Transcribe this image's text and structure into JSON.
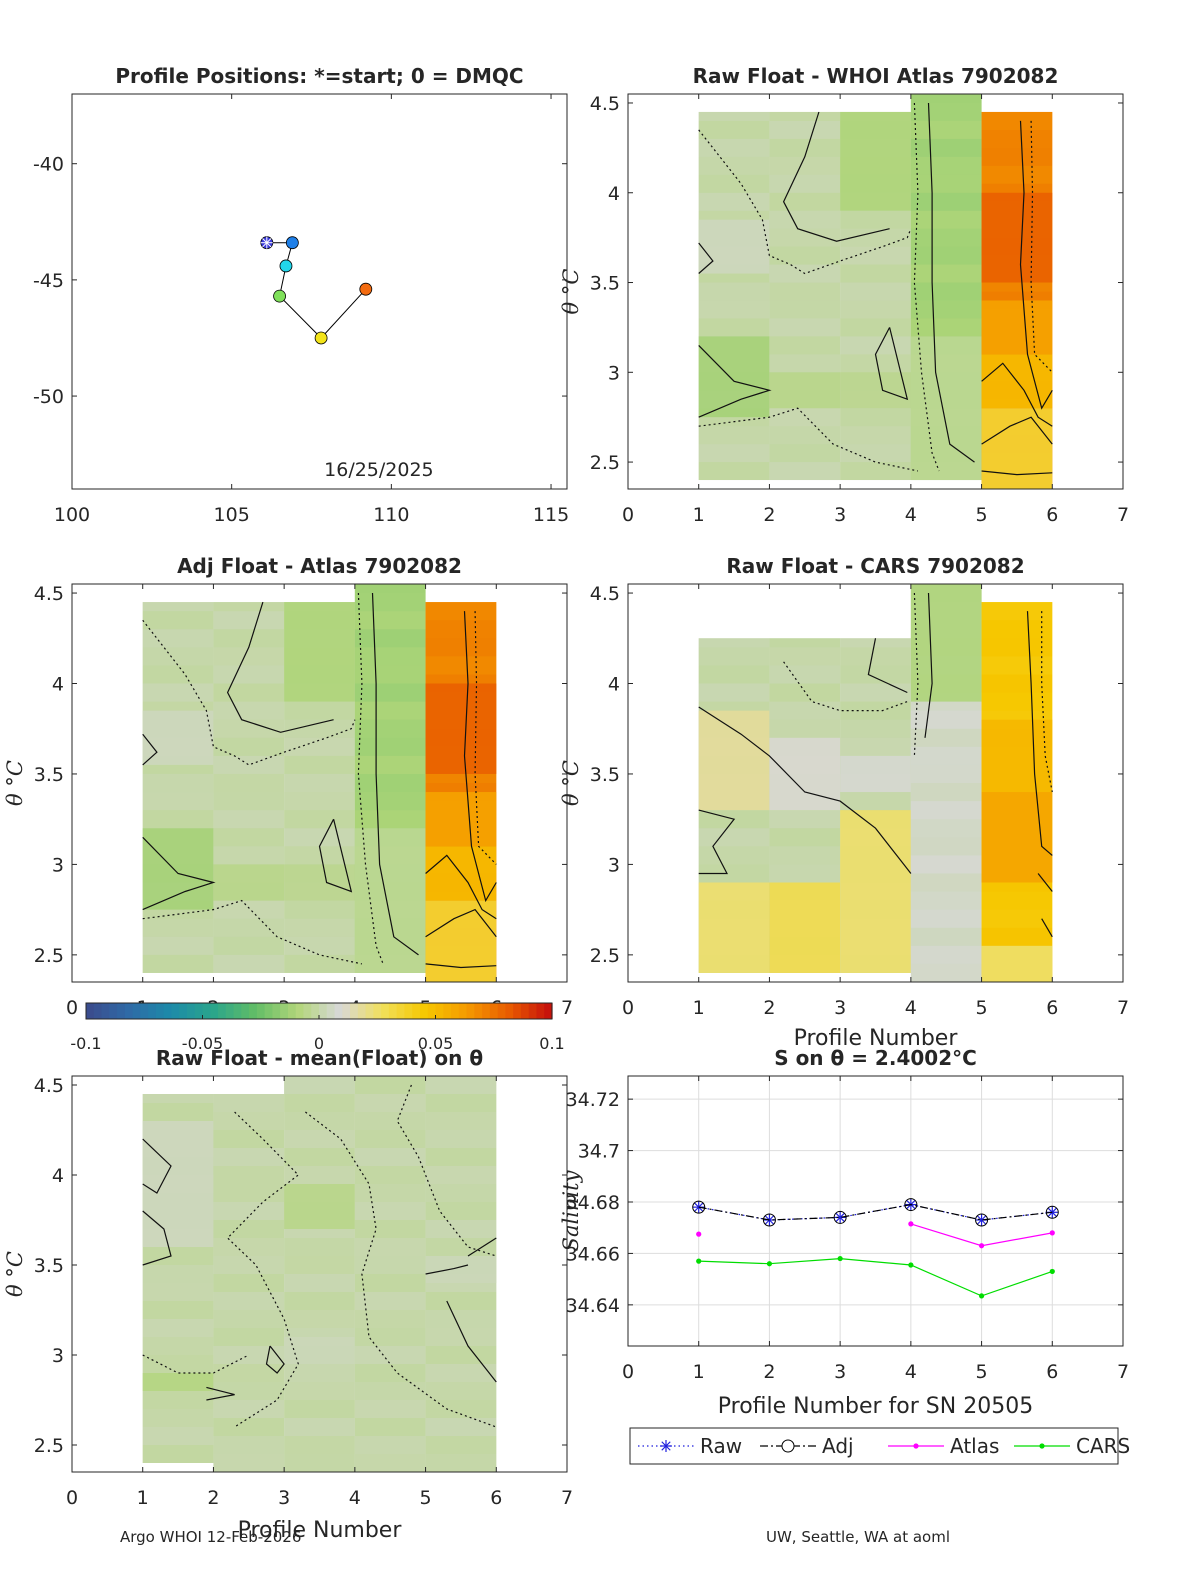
{
  "colors": {
    "axis": "#262626",
    "grid": "#dddddd",
    "neutral": "#d7d7d7",
    "raw": "#1f1fdd",
    "adj": "#000000",
    "atlas": "#ff00ff",
    "cars": "#00dd00"
  },
  "colorbar": {
    "ticks": [
      -0.1,
      -0.05,
      0,
      0.05,
      0.1
    ],
    "tick_labels": [
      "-0.1",
      "-0.05",
      "0",
      "0.05",
      "0.1"
    ],
    "range": [
      -0.1,
      0.1
    ],
    "colors": [
      "#3b4a8c",
      "#2f6aa6",
      "#1c8aa9",
      "#2aa58b",
      "#62bd66",
      "#b2d67a",
      "#d8d8d8",
      "#f1e05a",
      "#f6c700",
      "#f59a00",
      "#e85a00",
      "#c40c0c"
    ]
  },
  "footer": {
    "left": "Argo WHOI 12-Feb-2026",
    "right": "UW, Seattle, WA at aoml"
  },
  "chart_data": [
    {
      "id": "positions",
      "type": "scatter",
      "title": "Profile Positions: *=start; 0 = DMQC",
      "xlabel": "",
      "ylabel": "",
      "xlim": [
        100,
        115.5
      ],
      "ylim": [
        -54,
        -37
      ],
      "xticks": [
        100,
        105,
        110,
        115
      ],
      "yticks": [
        -40,
        -45,
        -50
      ],
      "annotation": "16/25/2025",
      "points": [
        {
          "lon": 106.1,
          "lat": -43.4,
          "color": "#3b3bdc",
          "marker": "star"
        },
        {
          "lon": 106.9,
          "lat": -43.4,
          "color": "#1e7fe8",
          "marker": "circle"
        },
        {
          "lon": 106.7,
          "lat": -44.4,
          "color": "#22d6ea",
          "marker": "circle"
        },
        {
          "lon": 106.5,
          "lat": -45.7,
          "color": "#7fe05a",
          "marker": "circle"
        },
        {
          "lon": 107.8,
          "lat": -47.5,
          "color": "#f3e41a",
          "marker": "circle"
        },
        {
          "lon": 109.2,
          "lat": -45.4,
          "color": "#f36b10",
          "marker": "circle"
        }
      ]
    },
    {
      "id": "raw-atlas",
      "type": "heatmap",
      "title": "Raw Float - WHOI Atlas  7902082",
      "xlabel": "",
      "ylabel": "θ °C",
      "xlim": [
        0,
        7
      ],
      "ylim": [
        2.35,
        4.55
      ],
      "xticks": [
        0,
        1,
        2,
        3,
        4,
        5,
        6,
        7
      ],
      "yticks": [
        2.5,
        3,
        3.5,
        4,
        4.5
      ],
      "columns": [
        {
          "x0": 1,
          "x1": 2,
          "ymin": 2.4,
          "ymax": 4.45,
          "base": 0,
          "patches": [
            [
              2.75,
              3.2,
              -0.012
            ],
            [
              3.55,
              3.85,
              0.004
            ]
          ]
        },
        {
          "x0": 2,
          "x1": 3,
          "ymin": 2.4,
          "ymax": 4.45,
          "base": 0,
          "patches": [
            [
              2.8,
              3.0,
              -0.006
            ]
          ]
        },
        {
          "x0": 3,
          "x1": 4,
          "ymin": 2.4,
          "ymax": 4.45,
          "base": 0,
          "patches": [
            [
              3.9,
              4.45,
              -0.01
            ],
            [
              2.8,
              3.0,
              -0.005
            ]
          ]
        },
        {
          "x0": 4,
          "x1": 5,
          "ymin": 2.4,
          "ymax": 4.55,
          "base": -0.012,
          "patches": [
            [
              2.4,
              3.2,
              -0.004
            ]
          ]
        },
        {
          "x0": 5,
          "x1": 6,
          "ymin": 2.35,
          "ymax": 4.45,
          "base": 0.07,
          "patches": [
            [
              2.35,
              2.8,
              0.035
            ],
            [
              2.8,
              3.1,
              0.05
            ],
            [
              3.1,
              3.4,
              0.06
            ],
            [
              3.5,
              4.0,
              0.08
            ]
          ]
        }
      ]
    },
    {
      "id": "adj-atlas",
      "type": "heatmap",
      "title": "Adj Float - Atlas  7902082",
      "xlabel": "",
      "ylabel": "θ °C",
      "xlim": [
        0,
        7
      ],
      "ylim": [
        2.35,
        4.55
      ],
      "xticks": [
        0,
        1,
        2,
        3,
        4,
        5,
        6,
        7
      ],
      "yticks": [
        2.5,
        3,
        3.5,
        4,
        4.5
      ],
      "columns": [
        {
          "x0": 1,
          "x1": 2,
          "ymin": 2.4,
          "ymax": 4.45,
          "base": 0,
          "patches": [
            [
              2.75,
              3.2,
              -0.012
            ],
            [
              3.55,
              3.85,
              0.004
            ]
          ]
        },
        {
          "x0": 2,
          "x1": 3,
          "ymin": 2.4,
          "ymax": 4.45,
          "base": 0,
          "patches": [
            [
              2.8,
              3.0,
              -0.006
            ]
          ]
        },
        {
          "x0": 3,
          "x1": 4,
          "ymin": 2.4,
          "ymax": 4.45,
          "base": 0,
          "patches": [
            [
              3.9,
              4.45,
              -0.01
            ],
            [
              2.8,
              3.0,
              -0.005
            ]
          ]
        },
        {
          "x0": 4,
          "x1": 5,
          "ymin": 2.4,
          "ymax": 4.55,
          "base": -0.012,
          "patches": [
            [
              2.4,
              3.2,
              -0.004
            ]
          ]
        },
        {
          "x0": 5,
          "x1": 6,
          "ymin": 2.35,
          "ymax": 4.45,
          "base": 0.07,
          "patches": [
            [
              2.35,
              2.8,
              0.035
            ],
            [
              2.8,
              3.1,
              0.05
            ],
            [
              3.1,
              3.4,
              0.06
            ],
            [
              3.5,
              4.0,
              0.08
            ]
          ]
        }
      ]
    },
    {
      "id": "raw-cars",
      "type": "heatmap",
      "title": "Raw Float - CARS  7902082",
      "xlabel": "Profile Number",
      "ylabel": "θ °C",
      "xlim": [
        0,
        7
      ],
      "ylim": [
        2.35,
        4.55
      ],
      "xticks": [
        0,
        1,
        2,
        3,
        4,
        5,
        6,
        7
      ],
      "yticks": [
        2.5,
        3,
        3.5,
        4,
        4.5
      ],
      "columns": [
        {
          "x0": 1,
          "x1": 2,
          "ymin": 2.4,
          "ymax": 4.25,
          "base": 0,
          "patches": [
            [
              2.4,
              2.9,
              0.025
            ],
            [
              3.3,
              3.85,
              0.018
            ]
          ]
        },
        {
          "x0": 2,
          "x1": 3,
          "ymin": 2.4,
          "ymax": 4.25,
          "base": 0,
          "patches": [
            [
              2.4,
              2.9,
              0.03
            ],
            [
              3.3,
              3.7,
              0.01
            ]
          ]
        },
        {
          "x0": 3,
          "x1": 4,
          "ymin": 2.4,
          "ymax": 4.25,
          "base": 0,
          "patches": [
            [
              2.4,
              3.3,
              0.025
            ],
            [
              3.4,
              3.6,
              0.008
            ]
          ]
        },
        {
          "x0": 4,
          "x1": 5,
          "ymin": 2.35,
          "ymax": 4.55,
          "base": 0.006,
          "patches": [
            [
              3.9,
              4.55,
              -0.01
            ]
          ]
        },
        {
          "x0": 5,
          "x1": 6,
          "ymin": 2.35,
          "ymax": 4.45,
          "base": 0.045,
          "patches": [
            [
              2.35,
              2.55,
              0.025
            ],
            [
              2.9,
              3.4,
              0.06
            ],
            [
              3.4,
              3.8,
              0.052
            ]
          ]
        }
      ]
    },
    {
      "id": "raw-mean",
      "type": "heatmap",
      "title": "Raw Float - mean(Float) on θ",
      "xlabel": "Profile Number",
      "ylabel": "θ °C",
      "xlim": [
        0,
        7
      ],
      "ylim": [
        2.35,
        4.55
      ],
      "xticks": [
        0,
        1,
        2,
        3,
        4,
        5,
        6,
        7
      ],
      "yticks": [
        2.5,
        3,
        3.5,
        4,
        4.5
      ],
      "columns": [
        {
          "x0": 1,
          "x1": 2,
          "ymin": 2.4,
          "ymax": 4.45,
          "base": 0,
          "patches": [
            [
              2.8,
              2.9,
              -0.008
            ],
            [
              3.6,
              4.3,
              0.004
            ]
          ]
        },
        {
          "x0": 2,
          "x1": 3,
          "ymin": 2.35,
          "ymax": 4.45,
          "base": 0,
          "patches": []
        },
        {
          "x0": 3,
          "x1": 4,
          "ymin": 2.35,
          "ymax": 4.55,
          "base": 0,
          "patches": [
            [
              3.7,
              3.95,
              -0.006
            ],
            [
              2.95,
              3.1,
              0.003
            ]
          ]
        },
        {
          "x0": 4,
          "x1": 5,
          "ymin": 2.35,
          "ymax": 4.55,
          "base": 0,
          "patches": []
        },
        {
          "x0": 5,
          "x1": 6,
          "ymin": 2.35,
          "ymax": 4.55,
          "base": 0,
          "patches": [
            [
              3.4,
              3.55,
              0.003
            ]
          ]
        }
      ]
    },
    {
      "id": "salinity",
      "type": "line",
      "title": "S on θ = 2.4002°C",
      "xlabel": "Profile Number for SN 20505",
      "ylabel": "Salinity",
      "xlim": [
        0,
        7
      ],
      "ylim": [
        34.624,
        34.729
      ],
      "xticks": [
        0,
        1,
        2,
        3,
        4,
        5,
        6,
        7
      ],
      "yticks": [
        34.64,
        34.66,
        34.68,
        34.7,
        34.72
      ],
      "ytick_labels": [
        "34.64",
        "34.66",
        "34.68",
        "34.7",
        "34.72"
      ],
      "x": [
        1,
        2,
        3,
        4,
        5,
        6
      ],
      "series": [
        {
          "name": "Raw",
          "values": [
            34.678,
            34.673,
            34.674,
            34.679,
            34.673,
            34.676
          ],
          "color": "#1f1fdd",
          "style": "dotted",
          "marker": "star"
        },
        {
          "name": "Adj",
          "values": [
            34.678,
            34.673,
            34.674,
            34.679,
            34.673,
            34.676
          ],
          "color": "#000000",
          "style": "dashdot",
          "marker": "circle"
        },
        {
          "name": "Atlas",
          "values": [
            34.6675,
            null,
            null,
            34.6715,
            34.663,
            34.668
          ],
          "color": "#ff00ff",
          "style": "solid",
          "marker": "dot"
        },
        {
          "name": "CARS",
          "values": [
            34.657,
            34.656,
            34.658,
            34.6555,
            34.6435,
            34.653
          ],
          "color": "#00dd00",
          "style": "solid",
          "marker": "dot"
        }
      ]
    }
  ]
}
